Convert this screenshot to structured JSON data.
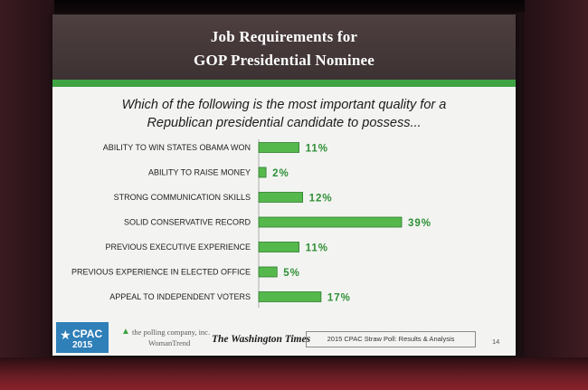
{
  "slide": {
    "title_line1": "Job Requirements for",
    "title_line2": "GOP Presidential Nominee",
    "question_line1": "Which of the following is the most important quality for a",
    "question_line2": "Republican presidential candidate to possess..."
  },
  "chart_data": {
    "type": "bar",
    "orientation": "horizontal",
    "categories": [
      "ABILITY TO WIN STATES OBAMA WON",
      "ABILITY TO RAISE MONEY",
      "STRONG COMMUNICATION SKILLS",
      "SOLID CONSERVATIVE RECORD",
      "PREVIOUS EXECUTIVE EXPERIENCE",
      "PREVIOUS EXPERIENCE IN ELECTED OFFICE",
      "APPEAL TO INDEPENDENT VOTERS"
    ],
    "values": [
      11,
      2,
      12,
      39,
      11,
      5,
      17
    ],
    "value_labels": [
      "11%",
      "2%",
      "12%",
      "39%",
      "11%",
      "5%",
      "17%"
    ],
    "bar_color": "#55b84c",
    "value_label_color": "#2f8f35",
    "xlim": [
      0,
      39
    ],
    "grid": false,
    "legend": "none"
  },
  "footer": {
    "cpac_logo_text": "CPAC",
    "cpac_logo_year": "2015",
    "polling_line1": "the polling company, inc.",
    "polling_line2": "WomanTrend",
    "newspaper": "The Washington Times",
    "footnote": "2015 CPAC Straw Poll: Results & Analysis",
    "page_number": "14"
  },
  "colors": {
    "header_bg": "#453839",
    "accent_green": "#3ea343",
    "slide_bg": "#f3f4f2"
  }
}
